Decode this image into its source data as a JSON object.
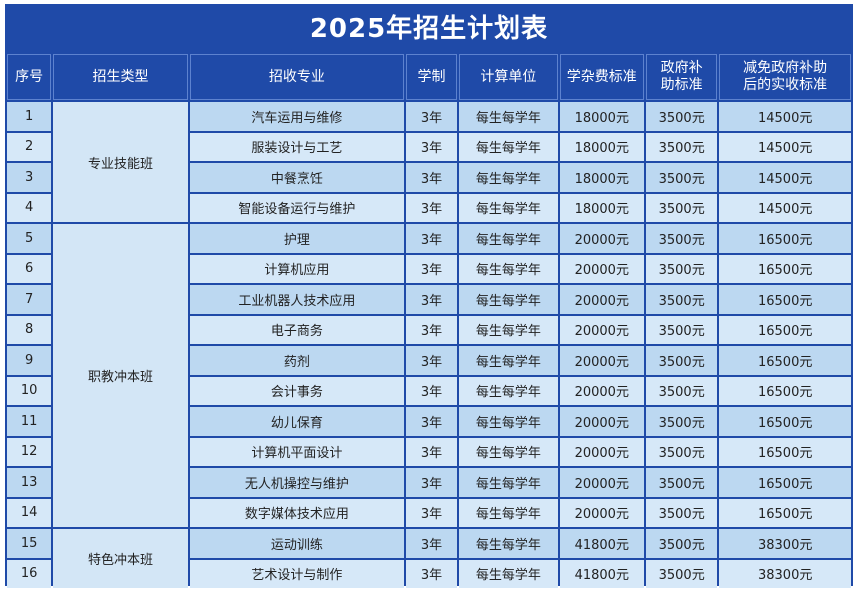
{
  "title": "2025年招生计划表",
  "headers": {
    "index": "序号",
    "category": "招生类型",
    "major": "招收专业",
    "duration": "学制",
    "unit": "计算单位",
    "fee": "学杂费标准",
    "subsidy_line1": "政府补",
    "subsidy_line2": "助标准",
    "actual_line1": "减免政府补助",
    "actual_line2": "后的实收标准"
  },
  "groups": {
    "g1": "专业技能班",
    "g2": "职教冲本班",
    "g3": "特色冲本班"
  },
  "rows": [
    {
      "index": "1",
      "major": "汽车运用与维修",
      "duration": "3年",
      "unit": "每生每学年",
      "fee": "18000元",
      "subsidy": "3500元",
      "actual": "14500元"
    },
    {
      "index": "2",
      "major": "服装设计与工艺",
      "duration": "3年",
      "unit": "每生每学年",
      "fee": "18000元",
      "subsidy": "3500元",
      "actual": "14500元"
    },
    {
      "index": "3",
      "major": "中餐烹饪",
      "duration": "3年",
      "unit": "每生每学年",
      "fee": "18000元",
      "subsidy": "3500元",
      "actual": "14500元"
    },
    {
      "index": "4",
      "major": "智能设备运行与维护",
      "duration": "3年",
      "unit": "每生每学年",
      "fee": "18000元",
      "subsidy": "3500元",
      "actual": "14500元"
    },
    {
      "index": "5",
      "major": "护理",
      "duration": "3年",
      "unit": "每生每学年",
      "fee": "20000元",
      "subsidy": "3500元",
      "actual": "16500元"
    },
    {
      "index": "6",
      "major": "计算机应用",
      "duration": "3年",
      "unit": "每生每学年",
      "fee": "20000元",
      "subsidy": "3500元",
      "actual": "16500元"
    },
    {
      "index": "7",
      "major": "工业机器人技术应用",
      "duration": "3年",
      "unit": "每生每学年",
      "fee": "20000元",
      "subsidy": "3500元",
      "actual": "16500元"
    },
    {
      "index": "8",
      "major": "电子商务",
      "duration": "3年",
      "unit": "每生每学年",
      "fee": "20000元",
      "subsidy": "3500元",
      "actual": "16500元"
    },
    {
      "index": "9",
      "major": "药剂",
      "duration": "3年",
      "unit": "每生每学年",
      "fee": "20000元",
      "subsidy": "3500元",
      "actual": "16500元"
    },
    {
      "index": "10",
      "major": "会计事务",
      "duration": "3年",
      "unit": "每生每学年",
      "fee": "20000元",
      "subsidy": "3500元",
      "actual": "16500元"
    },
    {
      "index": "11",
      "major": "幼儿保育",
      "duration": "3年",
      "unit": "每生每学年",
      "fee": "20000元",
      "subsidy": "3500元",
      "actual": "16500元"
    },
    {
      "index": "12",
      "major": "计算机平面设计",
      "duration": "3年",
      "unit": "每生每学年",
      "fee": "20000元",
      "subsidy": "3500元",
      "actual": "16500元"
    },
    {
      "index": "13",
      "major": "无人机操控与维护",
      "duration": "3年",
      "unit": "每生每学年",
      "fee": "20000元",
      "subsidy": "3500元",
      "actual": "16500元"
    },
    {
      "index": "14",
      "major": "数字媒体技术应用",
      "duration": "3年",
      "unit": "每生每学年",
      "fee": "20000元",
      "subsidy": "3500元",
      "actual": "16500元"
    },
    {
      "index": "15",
      "major": "运动训练",
      "duration": "3年",
      "unit": "每生每学年",
      "fee": "41800元",
      "subsidy": "3500元",
      "actual": "38300元"
    },
    {
      "index": "16",
      "major": "艺术设计与制作",
      "duration": "3年",
      "unit": "每生每学年",
      "fee": "41800元",
      "subsidy": "3500元",
      "actual": "38300元"
    }
  ]
}
